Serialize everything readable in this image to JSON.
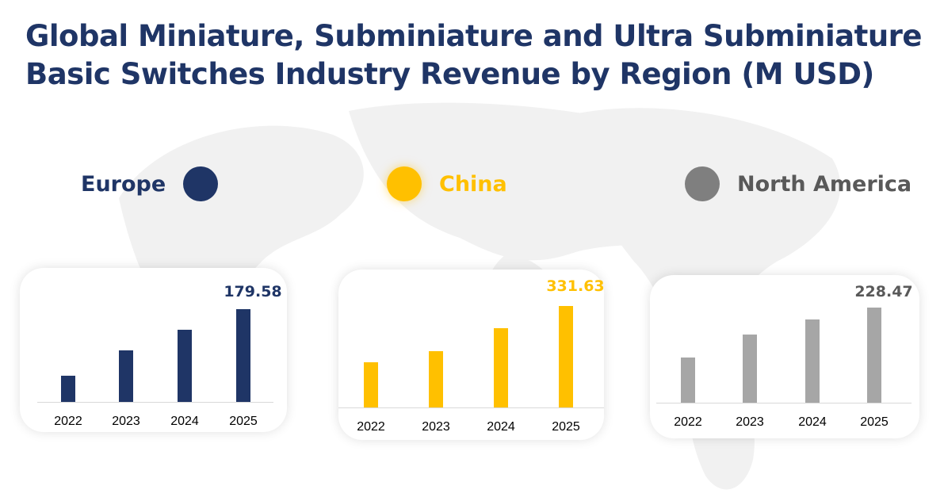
{
  "title_line1": "Global Miniature, Subminiature and Ultra Subminiature",
  "title_line2": "Basic Switches Industry Revenue by Region (M USD)",
  "chart_data": [
    {
      "type": "bar",
      "name": "Europe",
      "color": "#1f3566",
      "categories": [
        "2022",
        "2023",
        "2024",
        "2025"
      ],
      "values": [
        50.7,
        99.8,
        139.7,
        179.58
      ],
      "data_label": "179.58",
      "ylim": [
        0,
        179.58
      ]
    },
    {
      "type": "bar",
      "name": "China",
      "color": "#ffc000",
      "categories": [
        "2022",
        "2023",
        "2024",
        "2025"
      ],
      "values": [
        147.7,
        184.0,
        259.1,
        331.63
      ],
      "data_label": "331.63",
      "ylim": [
        0,
        331.63
      ]
    },
    {
      "type": "bar",
      "name": "North America",
      "color": "#a6a6a6",
      "categories": [
        "2022",
        "2023",
        "2024",
        "2025"
      ],
      "values": [
        108.5,
        163.7,
        199.9,
        228.47
      ],
      "data_label": "228.47",
      "ylim": [
        0,
        228.47
      ]
    }
  ],
  "legend_text_colors": [
    "#1f3566",
    "#ffc000",
    "#595959"
  ],
  "legend_dot_colors": [
    "#1f3566",
    "#ffc000",
    "#7f7f7f"
  ]
}
